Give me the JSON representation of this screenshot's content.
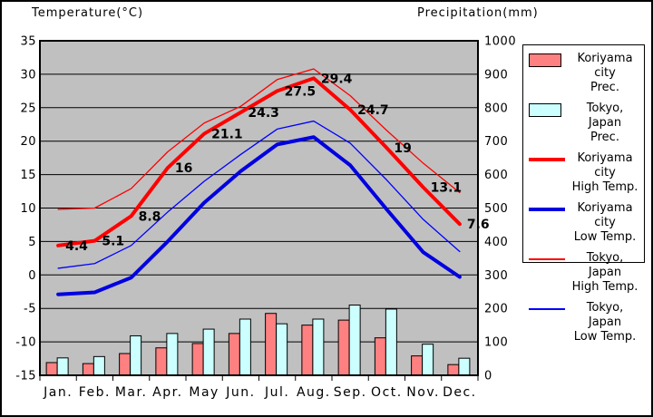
{
  "chart_data": {
    "type": "combo",
    "description": "Monthly climate comparison chart: temperature lines and precipitation bars for Koriyama city and Tokyo, Japan",
    "categories": [
      "Jan.",
      "Feb.",
      "Mar.",
      "Apr.",
      "May",
      "Jun.",
      "Jul.",
      "Aug.",
      "Sep.",
      "Oct.",
      "Nov.",
      "Dec."
    ],
    "temp_axis": {
      "title": "Temperature(°C)",
      "min": -15,
      "max": 35,
      "ticks": [
        35,
        30,
        25,
        20,
        15,
        10,
        5,
        0,
        -5,
        -10,
        -15
      ]
    },
    "prec_axis": {
      "title": "Precipitation(mm)",
      "min": 0,
      "max": 1000,
      "ticks": [
        1000,
        900,
        800,
        700,
        600,
        500,
        400,
        300,
        200,
        100,
        0
      ]
    },
    "series": [
      {
        "name": "Koriyama city Prec.",
        "type": "bar",
        "color": "#FF8080",
        "values": [
          38,
          35,
          65,
          82,
          95,
          125,
          185,
          150,
          165,
          112,
          58,
          32
        ]
      },
      {
        "name": "Tokyo, Japan Prec.",
        "type": "bar",
        "color": "#CCFFFF",
        "values": [
          52,
          56,
          118,
          125,
          138,
          168,
          154,
          168,
          210,
          198,
          93,
          51
        ]
      },
      {
        "name": "Koriyama city High Temp.",
        "type": "line",
        "color": "#FF0000",
        "width": 4,
        "values": [
          4.4,
          5.1,
          8.8,
          16,
          21.1,
          24.3,
          27.5,
          29.4,
          24.7,
          19,
          13.1,
          7.6
        ],
        "labels": [
          "4.4",
          "5.1",
          "8.8",
          "16",
          "21.1",
          "24.3",
          "27.5",
          "29.4",
          "24.7",
          "19",
          "13.1",
          "7.6"
        ]
      },
      {
        "name": "Koriyama city Low Temp.",
        "type": "line",
        "color": "#0000E0",
        "width": 4,
        "values": [
          -2.9,
          -2.6,
          -0.4,
          5.0,
          10.8,
          15.5,
          19.5,
          20.6,
          16.4,
          9.8,
          3.4,
          -0.3
        ]
      },
      {
        "name": "Tokyo, Japan High Temp.",
        "type": "line",
        "color": "#FF0000",
        "width": 1.3,
        "values": [
          9.8,
          10.0,
          12.9,
          18.4,
          22.7,
          25.2,
          29.2,
          30.8,
          26.8,
          21.6,
          16.7,
          12.3
        ]
      },
      {
        "name": "Tokyo, Japan Low Temp.",
        "type": "line",
        "color": "#0000FF",
        "width": 1.3,
        "values": [
          1.0,
          1.7,
          4.4,
          9.4,
          14.0,
          18.0,
          21.8,
          23.0,
          19.7,
          14.2,
          8.3,
          3.5
        ]
      }
    ],
    "legend": [
      {
        "line1": "Koriyama city",
        "line2": "Prec.",
        "swatch": "box",
        "color": "#FF8080"
      },
      {
        "line1": "Tokyo, Japan",
        "line2": "Prec.",
        "swatch": "box",
        "color": "#CCFFFF"
      },
      {
        "line1": "Koriyama city",
        "line2": "High Temp.",
        "swatch": "thick-line",
        "color": "#FF0000"
      },
      {
        "line1": "Koriyama city",
        "line2": "Low Temp.",
        "swatch": "thick-line",
        "color": "#0000E0"
      },
      {
        "line1": "Tokyo, Japan",
        "line2": "High Temp.",
        "swatch": "thin-line",
        "color": "#FF0000"
      },
      {
        "line1": "Tokyo, Japan",
        "line2": "Low Temp.",
        "swatch": "thin-line",
        "color": "#0000FF"
      }
    ],
    "layout": {
      "grid": "horizontal-only",
      "legend_position": "right",
      "plot_bg": "#C0C0C0",
      "grid_color": "#000000",
      "border_color": "#000000",
      "page_bg": "#FFFFFF"
    }
  }
}
